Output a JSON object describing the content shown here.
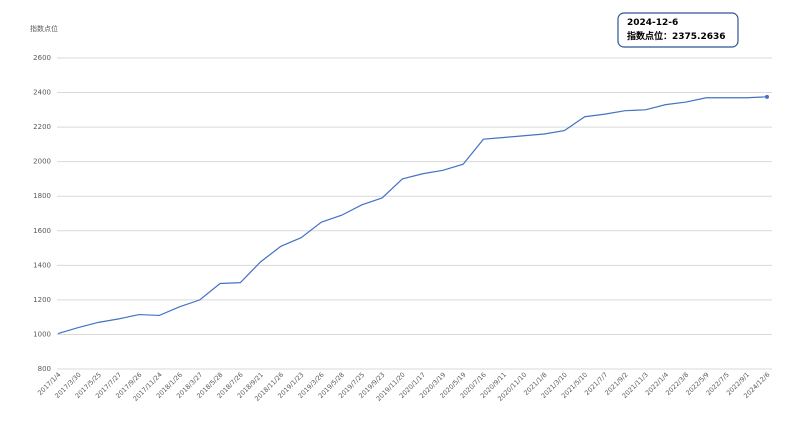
{
  "chart_data": {
    "type": "line",
    "y_label": "指数点位",
    "annotation": {
      "date": "2024-12-6",
      "text": "指数点位：2375.2636"
    },
    "categories": [
      "2017/1/4",
      "2017/3/30",
      "2017/5/25",
      "2017/7/27",
      "2017/9/26",
      "2017/11/24",
      "2018/1/26",
      "2018/3/27",
      "2018/5/28",
      "2018/7/26",
      "2018/9/21",
      "2018/11/26",
      "2019/1/23",
      "2019/3/26",
      "2019/5/28",
      "2019/7/25",
      "2019/9/23",
      "2019/11/20",
      "2020/1/17",
      "2020/3/19",
      "2020/5/19",
      "2020/7/16",
      "2020/9/11",
      "2020/11/10",
      "2021/1/8",
      "2021/3/10",
      "2021/5/10",
      "2021/7/7",
      "2021/9/2",
      "2021/11/3",
      "2022/1/4",
      "2022/3/8",
      "2022/5/9",
      "2022/7/5",
      "2022/9/1",
      "2024/12/6"
    ],
    "series": [
      {
        "name": "指数点位",
        "color": "#4472c4",
        "values": [
          1005,
          1040,
          1070,
          1090,
          1115,
          1110,
          1160,
          1200,
          1295,
          1300,
          1420,
          1510,
          1560,
          1650,
          1690,
          1750,
          1790,
          1900,
          1930,
          1950,
          1985,
          2130,
          2140,
          2150,
          2160,
          2180,
          2260,
          2275,
          2295,
          2300,
          2330,
          2345,
          2370,
          2370,
          2370,
          2375.2636
        ]
      }
    ],
    "ylim": [
      800,
      2600
    ],
    "yticks": [
      800,
      1000,
      1200,
      1400,
      1600,
      1800,
      2000,
      2200,
      2400,
      2600
    ],
    "grid": true
  }
}
